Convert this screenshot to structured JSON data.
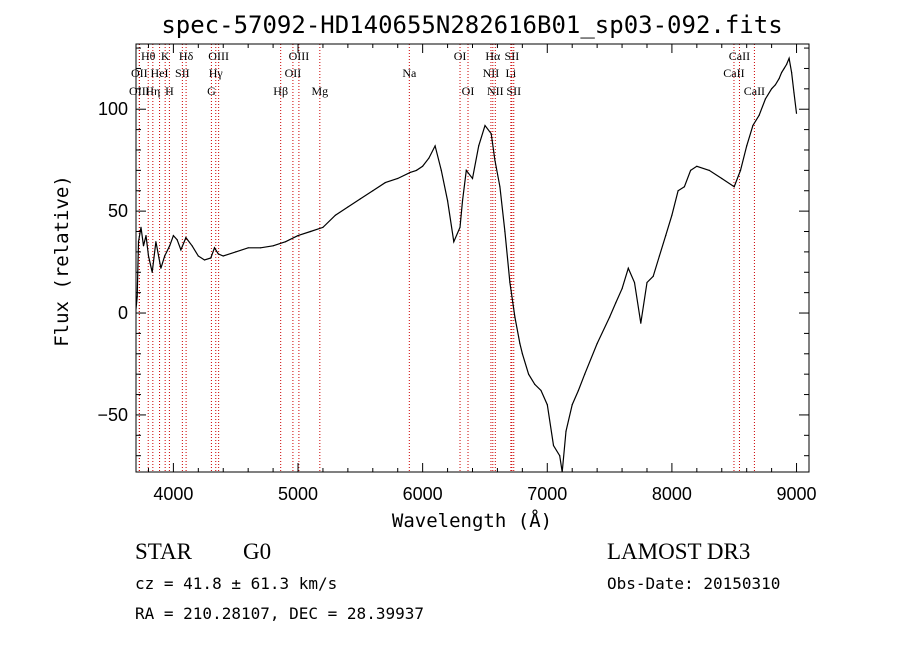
{
  "chart_data": {
    "type": "line",
    "title": "spec-57092-HD140655N282616B01_sp03-092.fits",
    "xlabel": "Wavelength (Å)",
    "ylabel": "Flux (relative)",
    "xlim": [
      3700,
      9100
    ],
    "ylim": [
      -78,
      132
    ],
    "grid": false,
    "x_ticks": [
      4000,
      5000,
      6000,
      7000,
      8000,
      9000
    ],
    "y_ticks": [
      -50,
      0,
      50,
      100
    ],
    "series": [
      {
        "name": "",
        "x": [
          3700,
          3710,
          3720,
          3740,
          3760,
          3780,
          3800,
          3830,
          3860,
          3900,
          3930,
          3970,
          4000,
          4030,
          4060,
          4100,
          4150,
          4200,
          4250,
          4300,
          4330,
          4360,
          4400,
          4500,
          4600,
          4700,
          4800,
          4900,
          5000,
          5100,
          5200,
          5300,
          5400,
          5500,
          5600,
          5700,
          5800,
          5900,
          5950,
          6000,
          6050,
          6100,
          6150,
          6200,
          6250,
          6300,
          6320,
          6350,
          6400,
          6450,
          6500,
          6550,
          6580,
          6620,
          6660,
          6700,
          6740,
          6780,
          6800,
          6850,
          6900,
          6950,
          7000,
          7050,
          7100,
          7120,
          7150,
          7200,
          7250,
          7300,
          7400,
          7500,
          7550,
          7600,
          7650,
          7700,
          7750,
          7800,
          7850,
          7900,
          7950,
          8000,
          8050,
          8100,
          8150,
          8200,
          8300,
          8400,
          8500,
          8550,
          8600,
          8650,
          8700,
          8750,
          8800,
          8830,
          8860,
          8880,
          8900,
          8920,
          8940,
          8960,
          8980,
          9000
        ],
        "y": [
          2,
          8,
          35,
          42,
          33,
          38,
          28,
          20,
          35,
          22,
          28,
          33,
          38,
          36,
          31,
          37,
          33,
          28,
          26,
          27,
          32,
          29,
          28,
          30,
          32,
          32,
          33,
          35,
          38,
          40,
          42,
          48,
          52,
          56,
          60,
          64,
          66,
          69,
          70,
          72,
          76,
          82,
          70,
          55,
          35,
          42,
          55,
          70,
          66,
          82,
          92,
          88,
          75,
          62,
          40,
          15,
          -2,
          -15,
          -20,
          -30,
          -35,
          -38,
          -45,
          -65,
          -70,
          -78,
          -58,
          -45,
          -38,
          -30,
          -15,
          -2,
          5,
          12,
          22,
          15,
          -5,
          15,
          18,
          28,
          38,
          48,
          60,
          62,
          70,
          72,
          70,
          66,
          62,
          70,
          82,
          92,
          97,
          105,
          110,
          112,
          115,
          118,
          120,
          122,
          125,
          118,
          108,
          98
        ]
      }
    ],
    "spectral_lines": [
      {
        "label": "Hθ",
        "x": 3798,
        "row": 0
      },
      {
        "label": "OII",
        "x": 3727,
        "row": 1
      },
      {
        "label": "OIII",
        "x": 3727,
        "row": 2
      },
      {
        "label": "K",
        "x": 3934,
        "row": 0
      },
      {
        "label": "Hη",
        "x": 3835,
        "row": 2
      },
      {
        "label": "HeI",
        "x": 3889,
        "row": 1
      },
      {
        "label": "H",
        "x": 3968,
        "row": 2
      },
      {
        "label": "Hδ",
        "x": 4102,
        "row": 0
      },
      {
        "label": "SII",
        "x": 4072,
        "row": 1
      },
      {
        "label": "OIII",
        "x": 4363,
        "row": 0
      },
      {
        "label": "Hγ",
        "x": 4340,
        "row": 1
      },
      {
        "label": "G",
        "x": 4305,
        "row": 2
      },
      {
        "label": "Hβ",
        "x": 4861,
        "row": 2
      },
      {
        "label": "OIII",
        "x": 5007,
        "row": 0
      },
      {
        "label": "OII",
        "x": 4959,
        "row": 1
      },
      {
        "label": "Mg",
        "x": 5175,
        "row": 2
      },
      {
        "label": "Na",
        "x": 5893,
        "row": 1
      },
      {
        "label": "OI",
        "x": 6300,
        "row": 0
      },
      {
        "label": "OI",
        "x": 6364,
        "row": 2
      },
      {
        "label": "Hα",
        "x": 6563,
        "row": 0
      },
      {
        "label": "NII",
        "x": 6548,
        "row": 1
      },
      {
        "label": "NII",
        "x": 6583,
        "row": 2
      },
      {
        "label": "SII",
        "x": 6716,
        "row": 0
      },
      {
        "label": "Li",
        "x": 6708,
        "row": 1
      },
      {
        "label": "SII",
        "x": 6731,
        "row": 2
      },
      {
        "label": "CaII",
        "x": 8542,
        "row": 0
      },
      {
        "label": "CaII",
        "x": 8498,
        "row": 1
      },
      {
        "label": "CaII",
        "x": 8662,
        "row": 2
      }
    ]
  },
  "info": {
    "class": "STAR",
    "subclass": "G0",
    "survey": "LAMOST DR3",
    "cz": "cz = 41.8 ± 61.3 km/s",
    "obs_date": "Obs-Date: 20150310",
    "coords": "RA = 210.28107, DEC =  28.39937"
  },
  "colors": {
    "spectrum": "#000000",
    "line_markers": "#cc0000",
    "axes": "#000000"
  }
}
